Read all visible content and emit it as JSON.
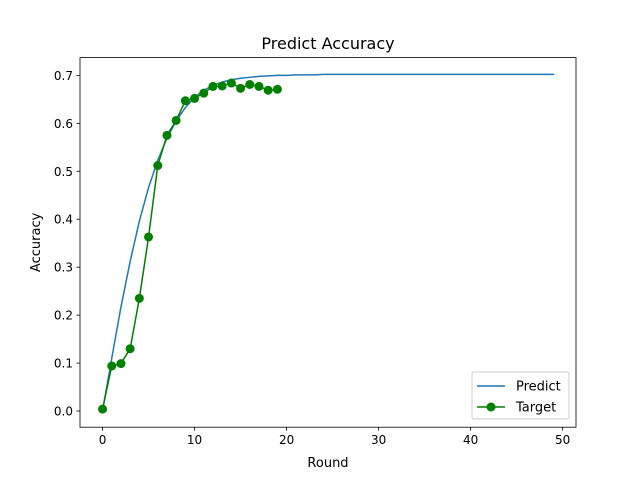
{
  "chart_data": {
    "type": "line",
    "title": "Predict Accuracy",
    "xlabel": "Round",
    "ylabel": "Accuracy",
    "xlim": [
      -2.45,
      51.45
    ],
    "ylim": [
      -0.0337,
      0.7371
    ],
    "x_ticks": [
      0,
      10,
      20,
      30,
      40,
      50
    ],
    "x_tick_labels": [
      "0",
      "10",
      "20",
      "30",
      "40",
      "50"
    ],
    "y_ticks": [
      0.0,
      0.1,
      0.2,
      0.3,
      0.4,
      0.5,
      0.6,
      0.7
    ],
    "y_tick_labels": [
      "0.0",
      "0.1",
      "0.2",
      "0.3",
      "0.4",
      "0.5",
      "0.6",
      "0.7"
    ],
    "grid": false,
    "legend_position": "lower-right",
    "series": [
      {
        "name": "Predict",
        "color": "#1f77b4",
        "marker": "none",
        "x": [
          0,
          1,
          2,
          3,
          4,
          5,
          6,
          7,
          8,
          9,
          10,
          11,
          12,
          13,
          14,
          15,
          16,
          17,
          18,
          19,
          20,
          21,
          22,
          23,
          24,
          25,
          26,
          27,
          28,
          29,
          30,
          31,
          32,
          33,
          34,
          35,
          36,
          37,
          38,
          39,
          40,
          41,
          42,
          43,
          44,
          45,
          46,
          47,
          48,
          49
        ],
        "values": [
          0.0,
          0.11,
          0.217,
          0.312,
          0.396,
          0.466,
          0.523,
          0.569,
          0.605,
          0.633,
          0.654,
          0.669,
          0.679,
          0.686,
          0.691,
          0.694,
          0.696,
          0.698,
          0.699,
          0.7,
          0.7,
          0.701,
          0.701,
          0.701,
          0.702,
          0.702,
          0.702,
          0.702,
          0.702,
          0.702,
          0.702,
          0.702,
          0.702,
          0.702,
          0.702,
          0.702,
          0.702,
          0.702,
          0.702,
          0.702,
          0.702,
          0.702,
          0.702,
          0.702,
          0.702,
          0.702,
          0.702,
          0.702,
          0.702,
          0.702
        ]
      },
      {
        "name": "Target",
        "color": "#008000",
        "marker": "circle",
        "x": [
          0,
          1,
          2,
          3,
          4,
          5,
          6,
          7,
          8,
          9,
          10,
          11,
          12,
          13,
          14,
          15,
          16,
          17,
          18,
          19
        ],
        "values": [
          0.004,
          0.094,
          0.099,
          0.13,
          0.235,
          0.363,
          0.512,
          0.575,
          0.606,
          0.647,
          0.652,
          0.663,
          0.677,
          0.678,
          0.684,
          0.673,
          0.681,
          0.677,
          0.669,
          0.671
        ]
      }
    ]
  }
}
